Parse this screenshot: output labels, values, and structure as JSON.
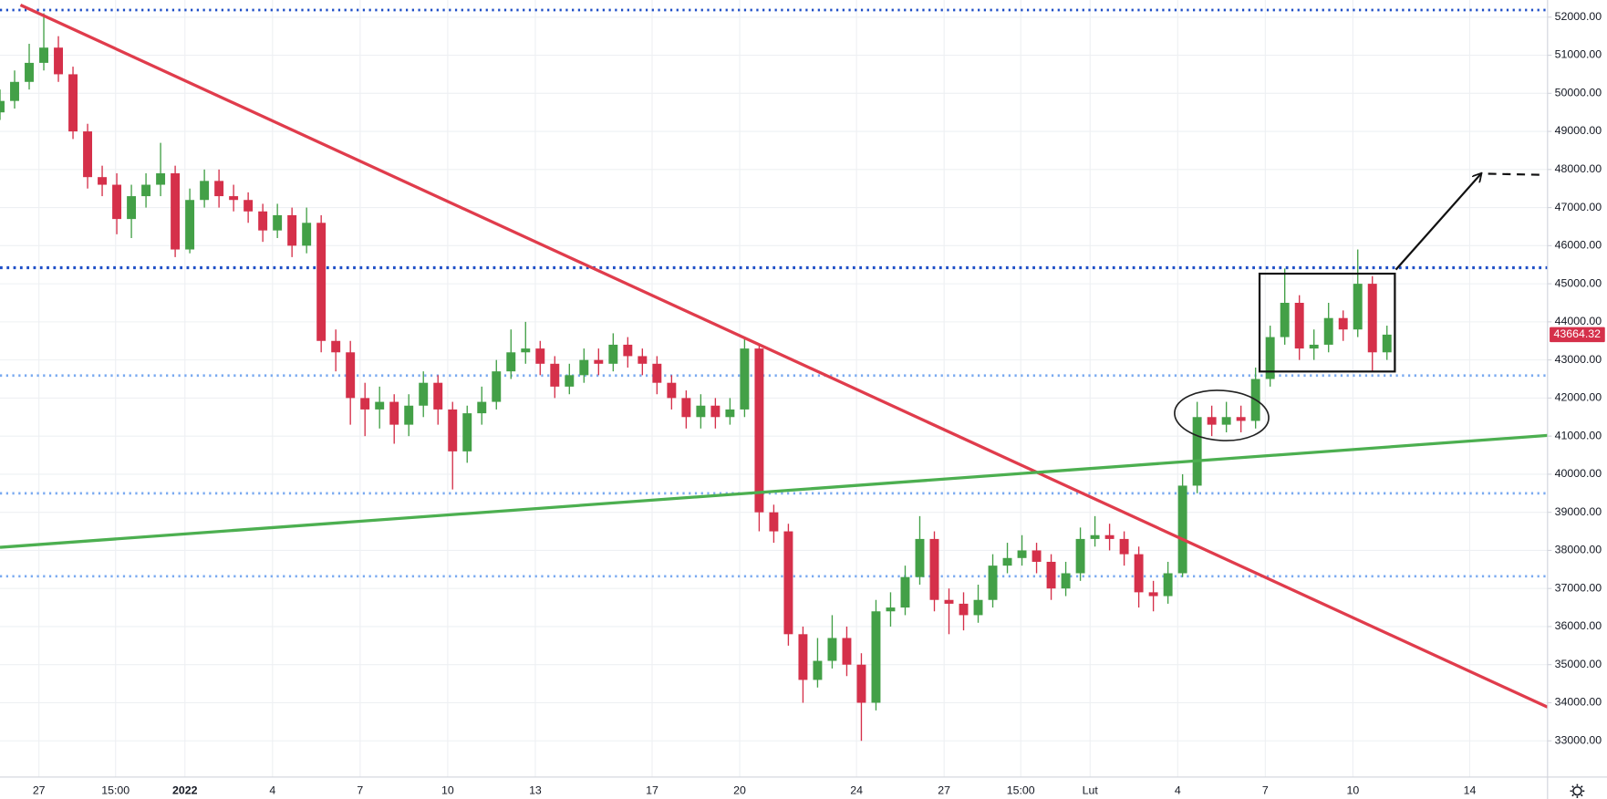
{
  "chart_data": {
    "type": "candlestick",
    "up_color": "#43a047",
    "down_color": "#d5304a",
    "grid": true,
    "xlim": [
      0,
      318
    ],
    "xticks": [
      {
        "value": 8,
        "label": "27"
      },
      {
        "value": 23.75,
        "label": "15:00"
      },
      {
        "value": 38,
        "label": "2022"
      },
      {
        "value": 56,
        "label": "4"
      },
      {
        "value": 74,
        "label": "7"
      },
      {
        "value": 92,
        "label": "10"
      },
      {
        "value": 110,
        "label": "13"
      },
      {
        "value": 134,
        "label": "17"
      },
      {
        "value": 152,
        "label": "20"
      },
      {
        "value": 176,
        "label": "24"
      },
      {
        "value": 194,
        "label": "27"
      },
      {
        "value": 209.75,
        "label": "15:00"
      },
      {
        "value": 224,
        "label": "Lut"
      },
      {
        "value": 242,
        "label": "4"
      },
      {
        "value": 260,
        "label": "7"
      },
      {
        "value": 278,
        "label": "10"
      },
      {
        "value": 302,
        "label": "14"
      }
    ],
    "ylim": [
      32050,
      52450
    ],
    "yticks": [
      {
        "value": 33000,
        "label": "33000.00"
      },
      {
        "value": 34000,
        "label": "34000.00"
      },
      {
        "value": 35000,
        "label": "35000.00"
      },
      {
        "value": 36000,
        "label": "36000.00"
      },
      {
        "value": 37000,
        "label": "37000.00"
      },
      {
        "value": 38000,
        "label": "38000.00"
      },
      {
        "value": 39000,
        "label": "39000.00"
      },
      {
        "value": 40000,
        "label": "40000.00"
      },
      {
        "value": 41000,
        "label": "41000.00"
      },
      {
        "value": 42000,
        "label": "42000.00"
      },
      {
        "value": 43000,
        "label": "43000.00"
      },
      {
        "value": 44000,
        "label": "44000.00"
      },
      {
        "value": 45000,
        "label": "45000.00"
      },
      {
        "value": 46000,
        "label": "46000.00"
      },
      {
        "value": 47000,
        "label": "47000.00"
      },
      {
        "value": 48000,
        "label": "48000.00"
      },
      {
        "value": 49000,
        "label": "49000.00"
      },
      {
        "value": 50000,
        "label": "50000.00"
      },
      {
        "value": 51000,
        "label": "51000.00"
      },
      {
        "value": 52000,
        "label": "52000.00"
      }
    ],
    "x": [
      0,
      3,
      6,
      9,
      12,
      15,
      18,
      21,
      24,
      27,
      30,
      33,
      36,
      39,
      42,
      45,
      48,
      51,
      54,
      57,
      60,
      63,
      66,
      69,
      72,
      75,
      78,
      81,
      84,
      87,
      90,
      93,
      96,
      99,
      102,
      105,
      108,
      111,
      114,
      117,
      120,
      123,
      126,
      129,
      132,
      135,
      138,
      141,
      144,
      147,
      150,
      153,
      156,
      159,
      162,
      165,
      168,
      171,
      174,
      177,
      180,
      183,
      186,
      189,
      192,
      195,
      198,
      201,
      204,
      207,
      210,
      213,
      216,
      219,
      222,
      225,
      228,
      231,
      234,
      237,
      240,
      243,
      246,
      249,
      252,
      255,
      258,
      261,
      264,
      267,
      270,
      273,
      276,
      279,
      282,
      285
    ],
    "open": [
      49500,
      49800,
      50300,
      50800,
      51200,
      50500,
      49000,
      47800,
      47600,
      46700,
      47300,
      47600,
      47900,
      45900,
      47200,
      47700,
      47300,
      47200,
      46900,
      46400,
      46800,
      46000,
      46600,
      43500,
      43200,
      42000,
      41700,
      41900,
      41300,
      41800,
      42400,
      41700,
      40600,
      41600,
      41900,
      42700,
      43200,
      43300,
      42900,
      42300,
      42600,
      43000,
      42900,
      43400,
      43100,
      42900,
      42400,
      42000,
      41500,
      41800,
      41500,
      41700,
      43300,
      39000,
      38500,
      35800,
      34600,
      35100,
      35700,
      35000,
      34000,
      36400,
      36500,
      37300,
      38300,
      36700,
      36600,
      36300,
      36700,
      37600,
      37800,
      38000,
      37700,
      37000,
      37400,
      38300,
      38400,
      38300,
      37900,
      36900,
      36800,
      37400,
      39700,
      41500,
      41300,
      41500,
      41400,
      42500,
      43600,
      44500,
      43300,
      43400,
      44100,
      43800,
      45000,
      43200
    ],
    "high": [
      50100,
      50600,
      51300,
      52100,
      51500,
      50700,
      49200,
      48100,
      47900,
      47600,
      47900,
      48700,
      48100,
      47500,
      48000,
      48000,
      47600,
      47400,
      47100,
      47100,
      47000,
      47000,
      46800,
      43800,
      43500,
      42400,
      42300,
      42100,
      42100,
      42700,
      42600,
      41900,
      41800,
      42300,
      43000,
      43800,
      44000,
      43500,
      43100,
      42900,
      43300,
      43300,
      43700,
      43600,
      43300,
      43100,
      42600,
      42200,
      42100,
      42000,
      42000,
      43600,
      43400,
      39200,
      38700,
      36000,
      35700,
      36300,
      36000,
      35300,
      36700,
      36900,
      37600,
      38900,
      38500,
      37000,
      36900,
      37100,
      37900,
      38200,
      38400,
      38200,
      37900,
      37700,
      38600,
      38900,
      38700,
      38500,
      38100,
      37200,
      37700,
      40000,
      41900,
      41800,
      41900,
      41800,
      42800,
      43900,
      45400,
      44700,
      43800,
      44500,
      44300,
      45900,
      45200,
      43900
    ],
    "low": [
      49300,
      49600,
      50100,
      50600,
      50300,
      48800,
      47500,
      47300,
      46300,
      46200,
      47000,
      47300,
      45700,
      45800,
      47000,
      47000,
      46900,
      46600,
      46100,
      46200,
      45700,
      45800,
      43200,
      42700,
      41300,
      41000,
      41200,
      40800,
      41000,
      41500,
      41300,
      39600,
      40300,
      41300,
      41700,
      42500,
      42900,
      42600,
      42000,
      42100,
      42400,
      42600,
      42700,
      42800,
      42600,
      42100,
      41700,
      41200,
      41200,
      41200,
      41300,
      41500,
      38500,
      38200,
      35500,
      34000,
      34400,
      34900,
      34700,
      33000,
      33800,
      36000,
      36300,
      37100,
      36400,
      35800,
      35900,
      36100,
      36500,
      37400,
      37600,
      37400,
      36700,
      36800,
      37200,
      38100,
      38000,
      37600,
      36500,
      36400,
      36600,
      37300,
      39500,
      41000,
      41100,
      41100,
      41200,
      42300,
      43400,
      43000,
      43000,
      43200,
      43500,
      43600,
      42700,
      43000
    ],
    "close": [
      49800,
      50300,
      50800,
      51200,
      50500,
      49000,
      47800,
      47600,
      46700,
      47300,
      47600,
      47900,
      45900,
      47200,
      47700,
      47300,
      47200,
      46900,
      46400,
      46800,
      46000,
      46600,
      43500,
      43200,
      42000,
      41700,
      41900,
      41300,
      41800,
      42400,
      41700,
      40600,
      41600,
      41900,
      42700,
      43200,
      43300,
      42900,
      42300,
      42600,
      43000,
      42900,
      43400,
      43100,
      42900,
      42400,
      42000,
      41500,
      41800,
      41500,
      41700,
      43300,
      39000,
      38500,
      35800,
      34600,
      35100,
      35700,
      35000,
      34000,
      36400,
      36500,
      37300,
      38300,
      36700,
      36600,
      36300,
      36700,
      37600,
      37800,
      38000,
      37700,
      37000,
      37400,
      38300,
      38400,
      38300,
      37900,
      36900,
      36800,
      37400,
      39700,
      41500,
      41300,
      41500,
      41400,
      42500,
      43600,
      44500,
      43300,
      43400,
      44100,
      43800,
      45000,
      43200,
      43664.32
    ]
  }
}
